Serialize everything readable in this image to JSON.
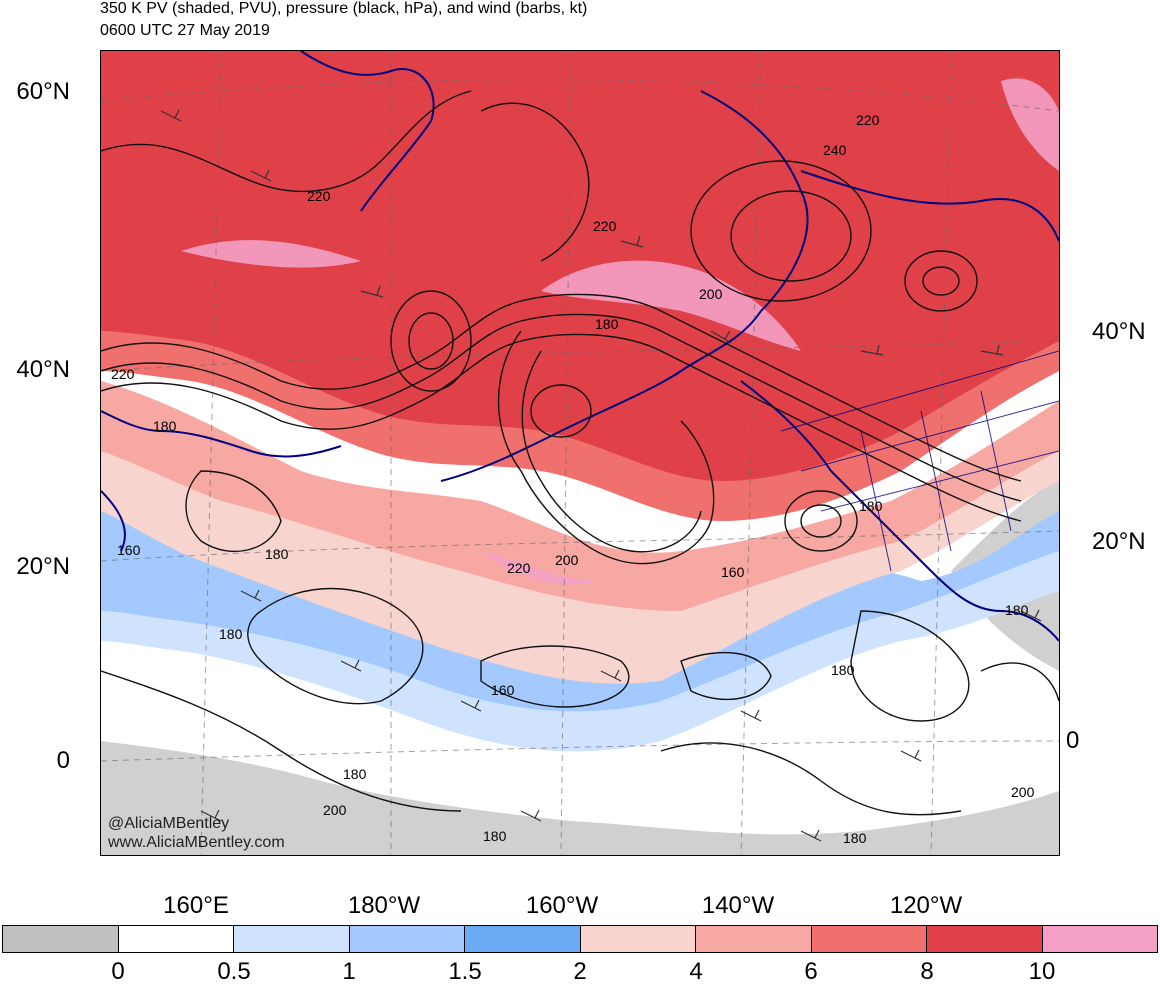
{
  "title": {
    "line1": "350 K PV (shaded, PVU), pressure (black, hPa), and wind (barbs, kt)",
    "line2": "0600 UTC 27 May 2019"
  },
  "map": {
    "lat_labels_left": [
      "60°N",
      "40°N",
      "20°N",
      "0"
    ],
    "lat_labels_right": [
      "40°N",
      "20°N",
      "0"
    ],
    "lon_labels": [
      "160°E",
      "180°W",
      "160°W",
      "140°W",
      "120°W"
    ],
    "contour_labels": [
      "220",
      "240",
      "220",
      "220",
      "200",
      "180",
      "220",
      "180",
      "160",
      "180",
      "220",
      "200",
      "160",
      "180",
      "180",
      "180",
      "160",
      "180",
      "180",
      "200",
      "180",
      "200",
      "180"
    ],
    "watermark": [
      "@AliciaMBentley",
      "www.AliciaMBentley.com"
    ],
    "colors": {
      "land_outline": "#000080",
      "contour": "#000000"
    }
  },
  "colorbar": {
    "ticks": [
      "0",
      "0.5",
      "1",
      "1.5",
      "2",
      "4",
      "6",
      "8",
      "10"
    ],
    "colors": [
      "#c0c0c0",
      "#ffffff",
      "#cfe3ff",
      "#a3c9ff",
      "#6aaaf5",
      "#f8d4cf",
      "#f8a8a2",
      "#f0706e",
      "#e04048",
      "#f4a0c6"
    ]
  }
}
